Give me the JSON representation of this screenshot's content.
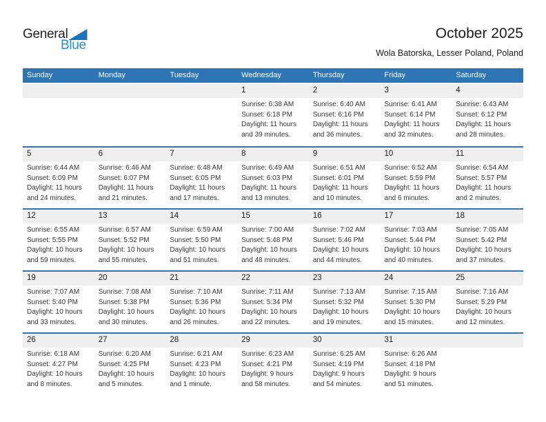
{
  "logo": {
    "general": "General",
    "blue": "Blue"
  },
  "header": {
    "title": "October 2025",
    "subtitle": "Wola Batorska, Lesser Poland, Poland"
  },
  "weekdays": [
    "Sunday",
    "Monday",
    "Tuesday",
    "Wednesday",
    "Thursday",
    "Friday",
    "Saturday"
  ],
  "colors": {
    "header_bg": "#2e75b6",
    "row_line": "#2e75b6",
    "band_bg": "#efefef",
    "logo_blue": "#1e93d2",
    "logo_triangle": "#1b75bc"
  },
  "weeks": [
    [
      null,
      null,
      null,
      {
        "day": "1",
        "sunrise": "Sunrise: 6:38 AM",
        "sunset": "Sunset: 6:18 PM",
        "daylight": "Daylight: 11 hours and 39 minutes."
      },
      {
        "day": "2",
        "sunrise": "Sunrise: 6:40 AM",
        "sunset": "Sunset: 6:16 PM",
        "daylight": "Daylight: 11 hours and 36 minutes."
      },
      {
        "day": "3",
        "sunrise": "Sunrise: 6:41 AM",
        "sunset": "Sunset: 6:14 PM",
        "daylight": "Daylight: 11 hours and 32 minutes."
      },
      {
        "day": "4",
        "sunrise": "Sunrise: 6:43 AM",
        "sunset": "Sunset: 6:12 PM",
        "daylight": "Daylight: 11 hours and 28 minutes."
      }
    ],
    [
      {
        "day": "5",
        "sunrise": "Sunrise: 6:44 AM",
        "sunset": "Sunset: 6:09 PM",
        "daylight": "Daylight: 11 hours and 24 minutes."
      },
      {
        "day": "6",
        "sunrise": "Sunrise: 6:46 AM",
        "sunset": "Sunset: 6:07 PM",
        "daylight": "Daylight: 11 hours and 21 minutes."
      },
      {
        "day": "7",
        "sunrise": "Sunrise: 6:48 AM",
        "sunset": "Sunset: 6:05 PM",
        "daylight": "Daylight: 11 hours and 17 minutes."
      },
      {
        "day": "8",
        "sunrise": "Sunrise: 6:49 AM",
        "sunset": "Sunset: 6:03 PM",
        "daylight": "Daylight: 11 hours and 13 minutes."
      },
      {
        "day": "9",
        "sunrise": "Sunrise: 6:51 AM",
        "sunset": "Sunset: 6:01 PM",
        "daylight": "Daylight: 11 hours and 10 minutes."
      },
      {
        "day": "10",
        "sunrise": "Sunrise: 6:52 AM",
        "sunset": "Sunset: 5:59 PM",
        "daylight": "Daylight: 11 hours and 6 minutes."
      },
      {
        "day": "11",
        "sunrise": "Sunrise: 6:54 AM",
        "sunset": "Sunset: 5:57 PM",
        "daylight": "Daylight: 11 hours and 2 minutes."
      }
    ],
    [
      {
        "day": "12",
        "sunrise": "Sunrise: 6:55 AM",
        "sunset": "Sunset: 5:55 PM",
        "daylight": "Daylight: 10 hours and 59 minutes."
      },
      {
        "day": "13",
        "sunrise": "Sunrise: 6:57 AM",
        "sunset": "Sunset: 5:52 PM",
        "daylight": "Daylight: 10 hours and 55 minutes."
      },
      {
        "day": "14",
        "sunrise": "Sunrise: 6:59 AM",
        "sunset": "Sunset: 5:50 PM",
        "daylight": "Daylight: 10 hours and 51 minutes."
      },
      {
        "day": "15",
        "sunrise": "Sunrise: 7:00 AM",
        "sunset": "Sunset: 5:48 PM",
        "daylight": "Daylight: 10 hours and 48 minutes."
      },
      {
        "day": "16",
        "sunrise": "Sunrise: 7:02 AM",
        "sunset": "Sunset: 5:46 PM",
        "daylight": "Daylight: 10 hours and 44 minutes."
      },
      {
        "day": "17",
        "sunrise": "Sunrise: 7:03 AM",
        "sunset": "Sunset: 5:44 PM",
        "daylight": "Daylight: 10 hours and 40 minutes."
      },
      {
        "day": "18",
        "sunrise": "Sunrise: 7:05 AM",
        "sunset": "Sunset: 5:42 PM",
        "daylight": "Daylight: 10 hours and 37 minutes."
      }
    ],
    [
      {
        "day": "19",
        "sunrise": "Sunrise: 7:07 AM",
        "sunset": "Sunset: 5:40 PM",
        "daylight": "Daylight: 10 hours and 33 minutes."
      },
      {
        "day": "20",
        "sunrise": "Sunrise: 7:08 AM",
        "sunset": "Sunset: 5:38 PM",
        "daylight": "Daylight: 10 hours and 30 minutes."
      },
      {
        "day": "21",
        "sunrise": "Sunrise: 7:10 AM",
        "sunset": "Sunset: 5:36 PM",
        "daylight": "Daylight: 10 hours and 26 minutes."
      },
      {
        "day": "22",
        "sunrise": "Sunrise: 7:11 AM",
        "sunset": "Sunset: 5:34 PM",
        "daylight": "Daylight: 10 hours and 22 minutes."
      },
      {
        "day": "23",
        "sunrise": "Sunrise: 7:13 AM",
        "sunset": "Sunset: 5:32 PM",
        "daylight": "Daylight: 10 hours and 19 minutes."
      },
      {
        "day": "24",
        "sunrise": "Sunrise: 7:15 AM",
        "sunset": "Sunset: 5:30 PM",
        "daylight": "Daylight: 10 hours and 15 minutes."
      },
      {
        "day": "25",
        "sunrise": "Sunrise: 7:16 AM",
        "sunset": "Sunset: 5:29 PM",
        "daylight": "Daylight: 10 hours and 12 minutes."
      }
    ],
    [
      {
        "day": "26",
        "sunrise": "Sunrise: 6:18 AM",
        "sunset": "Sunset: 4:27 PM",
        "daylight": "Daylight: 10 hours and 8 minutes."
      },
      {
        "day": "27",
        "sunrise": "Sunrise: 6:20 AM",
        "sunset": "Sunset: 4:25 PM",
        "daylight": "Daylight: 10 hours and 5 minutes."
      },
      {
        "day": "28",
        "sunrise": "Sunrise: 6:21 AM",
        "sunset": "Sunset: 4:23 PM",
        "daylight": "Daylight: 10 hours and 1 minute."
      },
      {
        "day": "29",
        "sunrise": "Sunrise: 6:23 AM",
        "sunset": "Sunset: 4:21 PM",
        "daylight": "Daylight: 9 hours and 58 minutes."
      },
      {
        "day": "30",
        "sunrise": "Sunrise: 6:25 AM",
        "sunset": "Sunset: 4:19 PM",
        "daylight": "Daylight: 9 hours and 54 minutes."
      },
      {
        "day": "31",
        "sunrise": "Sunrise: 6:26 AM",
        "sunset": "Sunset: 4:18 PM",
        "daylight": "Daylight: 9 hours and 51 minutes."
      },
      null
    ]
  ]
}
